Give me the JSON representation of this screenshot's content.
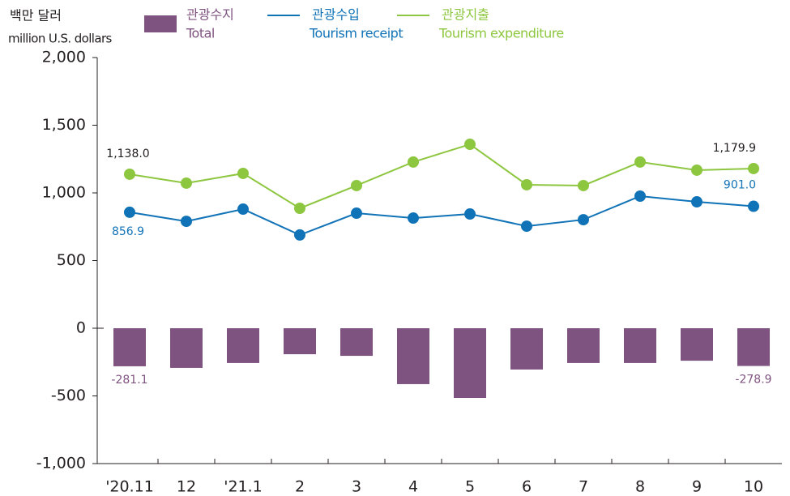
{
  "chart_data": {
    "type": "combo",
    "y_label": "백만 달러",
    "y_label_en": "million U.S. dollars",
    "categories": [
      "'20.11",
      "12",
      "'21.1",
      "2",
      "3",
      "4",
      "5",
      "6",
      "7",
      "8",
      "9",
      "10"
    ],
    "series": [
      {
        "name": "관광수지",
        "name_en": "Total",
        "type": "bar",
        "color": "#7f5380",
        "values": [
          -281.1,
          -293,
          -257,
          -192,
          -204,
          -413,
          -515,
          -305,
          -257,
          -257,
          -240,
          -278.9
        ],
        "value_labels": [
          "-281.1",
          null,
          null,
          null,
          null,
          null,
          null,
          null,
          null,
          null,
          null,
          "-278.9"
        ]
      },
      {
        "name": "관광수입",
        "name_en": "Tourism receipt",
        "type": "line",
        "color": "#1173b7",
        "values": [
          856.9,
          790,
          880,
          689,
          850,
          814,
          844,
          754,
          802,
          976,
          934,
          901.0
        ],
        "value_labels": [
          "856.9",
          null,
          null,
          null,
          null,
          null,
          null,
          null,
          null,
          null,
          null,
          "901.0"
        ]
      },
      {
        "name": "관광지출",
        "name_en": "Tourism expenditure",
        "type": "line",
        "color": "#8dc63f",
        "values": [
          1138.0,
          1072,
          1144,
          886,
          1054,
          1228,
          1359,
          1060,
          1054,
          1228,
          1168,
          1179.9
        ],
        "value_labels": [
          "1,138.0",
          null,
          null,
          null,
          null,
          null,
          null,
          null,
          null,
          null,
          null,
          "1,179.9"
        ]
      }
    ],
    "ylim": [
      -1000,
      2000
    ],
    "yticks": [
      {
        "value": -1000,
        "label": "-1,000"
      },
      -500,
      0,
      500,
      {
        "value": 1000,
        "label": "1,000"
      },
      {
        "value": 1500,
        "label": "1,500"
      },
      {
        "value": 2000,
        "label": "2,000"
      }
    ],
    "grid": false
  }
}
